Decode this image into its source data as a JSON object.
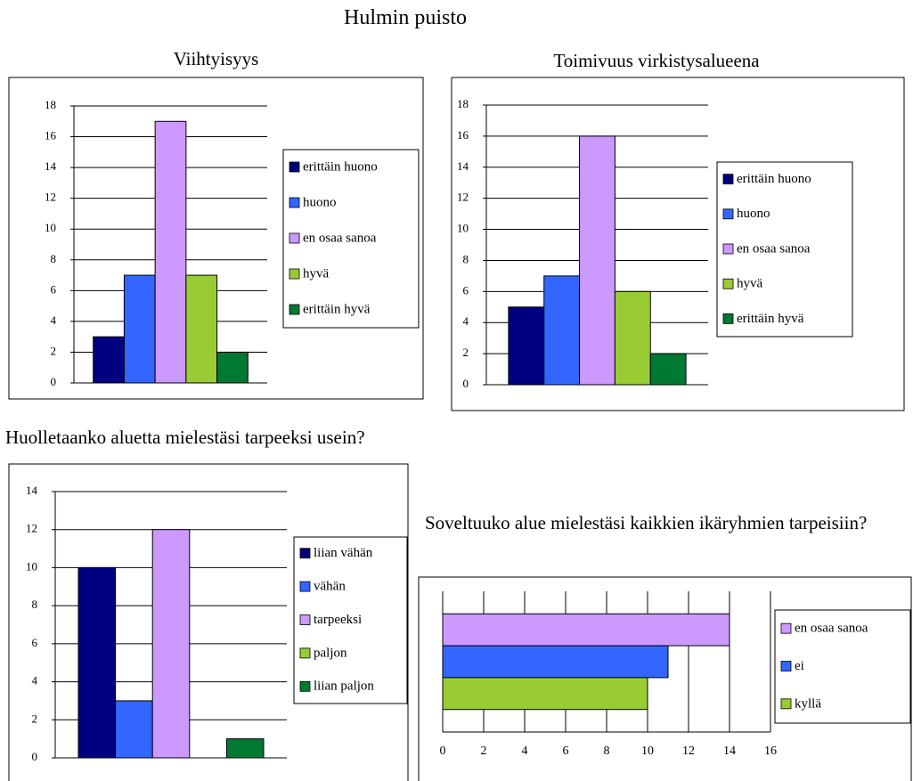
{
  "title": "Hulmin puisto",
  "chart_data": [
    {
      "type": "bar",
      "title": "Viihtyisyys",
      "categories": [
        null
      ],
      "series": [
        {
          "name": "erittäin huono",
          "color": "#000080",
          "values": [
            3
          ]
        },
        {
          "name": "huono",
          "color": "#3366ff",
          "values": [
            7
          ]
        },
        {
          "name": "en osaa sanoa",
          "color": "#cc99ff",
          "values": [
            17
          ]
        },
        {
          "name": "hyvä",
          "color": "#99cc33",
          "values": [
            7
          ]
        },
        {
          "name": "erittäin hyvä",
          "color": "#007a33",
          "values": [
            2
          ]
        }
      ],
      "ylim": [
        0,
        18
      ],
      "yticks": [
        0,
        2,
        4,
        6,
        8,
        10,
        12,
        14,
        16,
        18
      ],
      "grid": true,
      "legend": "right"
    },
    {
      "type": "bar",
      "title": "Toimivuus virkistysalueena",
      "categories": [
        null
      ],
      "series": [
        {
          "name": "erittäin huono",
          "color": "#000080",
          "values": [
            5
          ]
        },
        {
          "name": "huono",
          "color": "#3366ff",
          "values": [
            7
          ]
        },
        {
          "name": "en osaa sanoa",
          "color": "#cc99ff",
          "values": [
            16
          ]
        },
        {
          "name": "hyvä",
          "color": "#99cc33",
          "values": [
            6
          ]
        },
        {
          "name": "erittäin hyvä",
          "color": "#007a33",
          "values": [
            2
          ]
        }
      ],
      "ylim": [
        0,
        18
      ],
      "yticks": [
        0,
        2,
        4,
        6,
        8,
        10,
        12,
        14,
        16,
        18
      ],
      "grid": true,
      "legend": "right"
    },
    {
      "type": "bar",
      "title": "Huolletaanko aluetta mielestäsi tarpeeksi usein?",
      "categories": [
        null
      ],
      "series": [
        {
          "name": "liian vähän",
          "color": "#000080",
          "values": [
            10
          ]
        },
        {
          "name": "vähän",
          "color": "#3366ff",
          "values": [
            3
          ]
        },
        {
          "name": "tarpeeksi",
          "color": "#cc99ff",
          "values": [
            12
          ]
        },
        {
          "name": "paljon",
          "color": "#99cc33",
          "values": [
            0
          ]
        },
        {
          "name": "liian paljon",
          "color": "#007a33",
          "values": [
            1
          ]
        }
      ],
      "ylim": [
        0,
        14
      ],
      "yticks": [
        0,
        2,
        4,
        6,
        8,
        10,
        12,
        14
      ],
      "grid": true,
      "legend": "right"
    },
    {
      "type": "bar",
      "orientation": "horizontal",
      "title": "Soveltuuko alue mielestäsi kaikkien ikäryhmien tarpeisiin?",
      "categories": [
        null
      ],
      "series": [
        {
          "name": "en osaa sanoa",
          "color": "#cc99ff",
          "values": [
            14
          ]
        },
        {
          "name": "ei",
          "color": "#3366ff",
          "values": [
            11
          ]
        },
        {
          "name": "kyllä",
          "color": "#99cc33",
          "values": [
            10
          ]
        }
      ],
      "xlim": [
        0,
        16
      ],
      "xticks": [
        0,
        2,
        4,
        6,
        8,
        10,
        12,
        14,
        16
      ],
      "grid": true,
      "legend": "right"
    }
  ]
}
